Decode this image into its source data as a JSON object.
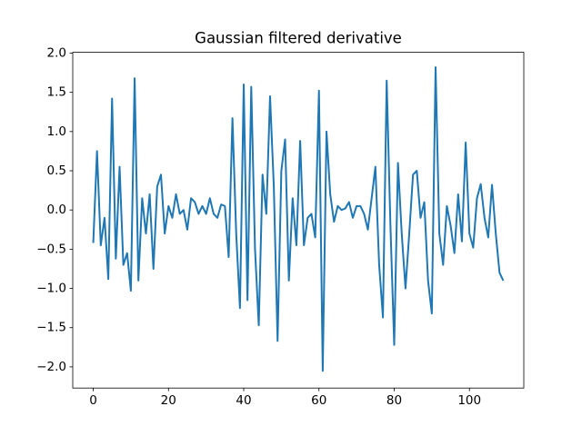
{
  "chart_data": {
    "type": "line",
    "title": "Gaussian filtered derivative",
    "x": [
      0,
      1,
      2,
      3,
      4,
      5,
      6,
      7,
      8,
      9,
      10,
      11,
      12,
      13,
      14,
      15,
      16,
      17,
      18,
      19,
      20,
      21,
      22,
      23,
      24,
      25,
      26,
      27,
      28,
      29,
      30,
      31,
      32,
      33,
      34,
      35,
      36,
      37,
      38,
      39,
      40,
      41,
      42,
      43,
      44,
      45,
      46,
      47,
      48,
      49,
      50,
      51,
      52,
      53,
      54,
      55,
      56,
      57,
      58,
      59,
      60,
      61,
      62,
      63,
      64,
      65,
      66,
      67,
      68,
      69,
      70,
      71,
      72,
      73,
      74,
      75,
      76,
      77,
      78,
      79,
      80,
      81,
      82,
      83,
      84,
      85,
      86,
      87,
      88,
      89,
      90,
      91,
      92,
      93,
      94,
      95,
      96,
      97,
      98,
      99,
      100,
      101,
      102,
      103,
      104,
      105,
      106,
      107,
      108,
      109
    ],
    "series": [
      {
        "color": "#1f77b4",
        "values": [
          -0.42,
          0.75,
          -0.45,
          -0.1,
          -0.88,
          1.42,
          -0.62,
          0.55,
          -0.7,
          -0.55,
          -1.03,
          1.68,
          -0.9,
          0.15,
          -0.3,
          0.2,
          -0.75,
          0.3,
          0.45,
          -0.3,
          0.05,
          -0.1,
          0.2,
          -0.05,
          0.0,
          -0.25,
          0.15,
          0.1,
          -0.05,
          0.05,
          -0.05,
          0.15,
          -0.05,
          -0.1,
          0.07,
          0.05,
          -0.6,
          1.17,
          -0.3,
          -1.25,
          1.6,
          -1.15,
          1.57,
          -0.5,
          -1.47,
          0.45,
          -0.05,
          1.45,
          0.3,
          -1.67,
          0.5,
          0.9,
          -0.9,
          0.15,
          -0.45,
          0.88,
          -0.45,
          -0.1,
          -0.05,
          -0.35,
          1.52,
          -2.05,
          1.0,
          0.2,
          -0.15,
          0.05,
          0.0,
          0.02,
          0.1,
          -0.1,
          0.05,
          0.05,
          -0.05,
          -0.25,
          0.15,
          0.55,
          -0.7,
          -1.37,
          1.65,
          -0.2,
          -1.72,
          0.6,
          -0.3,
          -1.0,
          -0.3,
          0.45,
          0.5,
          -0.1,
          0.1,
          -0.9,
          -1.32,
          1.82,
          -0.3,
          -0.7,
          0.05,
          -0.2,
          -0.55,
          0.2,
          -0.4,
          0.86,
          -0.3,
          -0.48,
          0.15,
          0.33,
          -0.1,
          -0.35,
          0.32,
          -0.3,
          -0.8,
          -0.9
        ]
      }
    ],
    "xlim": [
      -5.45,
      114.45
    ],
    "ylim": [
      -2.27,
      2.01
    ],
    "xticks": [
      0,
      20,
      40,
      60,
      80,
      100
    ],
    "yticks": [
      {
        "value": -2,
        "label": "−2.0"
      },
      {
        "value": -1.5,
        "label": "−1.5"
      },
      {
        "value": -1,
        "label": "−1.0"
      },
      {
        "value": -0.5,
        "label": "−0.5"
      },
      {
        "value": 0,
        "label": "0.0"
      },
      {
        "value": 0.5,
        "label": "0.5"
      },
      {
        "value": 1,
        "label": "1.0"
      },
      {
        "value": 1.5,
        "label": "1.5"
      },
      {
        "value": 2,
        "label": "2.0"
      }
    ]
  }
}
